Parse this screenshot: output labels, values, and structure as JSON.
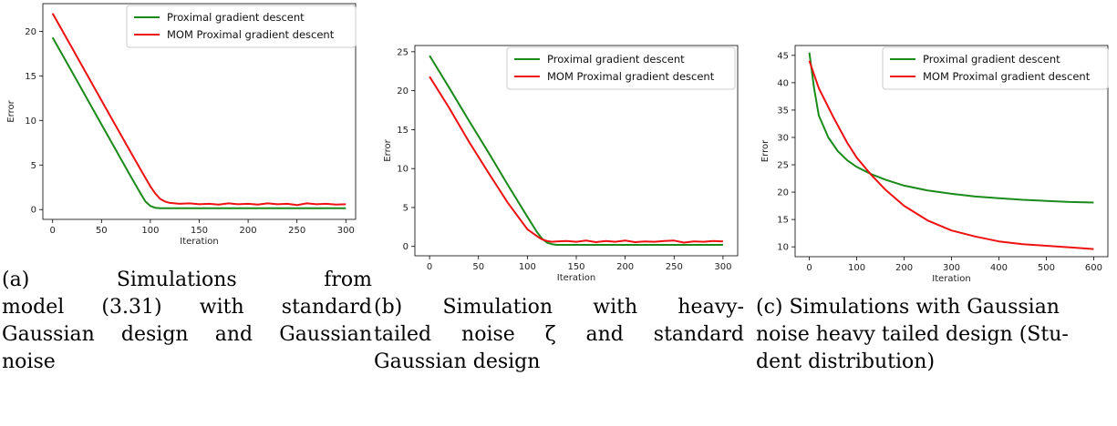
{
  "colors": {
    "green": "#1a8a1a",
    "red": "#ee1111"
  },
  "chart_data": [
    {
      "type": "line",
      "xlabel": "Iteration",
      "ylabel": "Error",
      "xlim": [
        -10,
        310
      ],
      "ylim": [
        -1.1,
        23.1
      ],
      "xticks": [
        0,
        50,
        100,
        150,
        200,
        250,
        300
      ],
      "yticks": [
        0,
        5,
        10,
        15,
        20
      ],
      "legend": "top-right",
      "series": [
        {
          "name": "Proximal gradient descent",
          "color": "green",
          "x": [
            0,
            20,
            40,
            60,
            80,
            90,
            95,
            100,
            105,
            110,
            150,
            200,
            250,
            300
          ],
          "y": [
            19.3,
            15.4,
            11.5,
            7.6,
            3.7,
            1.8,
            0.9,
            0.4,
            0.2,
            0.15,
            0.15,
            0.15,
            0.15,
            0.15
          ]
        },
        {
          "name": "MOM Proximal gradient descent",
          "color": "red",
          "x": [
            0,
            20,
            40,
            60,
            80,
            90,
            100,
            105,
            110,
            115,
            120,
            130,
            140,
            150,
            160,
            170,
            180,
            190,
            200,
            210,
            220,
            230,
            240,
            250,
            260,
            270,
            280,
            290,
            300
          ],
          "y": [
            22.0,
            18.1,
            14.2,
            10.3,
            6.4,
            4.5,
            2.6,
            1.8,
            1.2,
            0.9,
            0.75,
            0.65,
            0.7,
            0.6,
            0.65,
            0.55,
            0.7,
            0.6,
            0.65,
            0.55,
            0.7,
            0.6,
            0.65,
            0.5,
            0.7,
            0.6,
            0.65,
            0.55,
            0.6
          ]
        }
      ]
    },
    {
      "type": "line",
      "xlabel": "Iteration",
      "ylabel": "Error",
      "xlim": [
        -15,
        315
      ],
      "ylim": [
        -1.2,
        25.8
      ],
      "xticks": [
        0,
        50,
        100,
        150,
        200,
        250,
        300
      ],
      "yticks": [
        0,
        5,
        10,
        15,
        20,
        25
      ],
      "legend": "top-right",
      "series": [
        {
          "name": "Proximal gradient descent",
          "color": "green",
          "x": [
            0,
            20,
            40,
            60,
            80,
            100,
            110,
            115,
            120,
            125,
            130,
            150,
            200,
            250,
            300
          ],
          "y": [
            24.5,
            20.4,
            16.2,
            12.1,
            7.9,
            3.8,
            1.8,
            1.0,
            0.5,
            0.3,
            0.2,
            0.2,
            0.2,
            0.2,
            0.2
          ]
        },
        {
          "name": "MOM Proximal gradient descent",
          "color": "red",
          "x": [
            0,
            20,
            40,
            60,
            80,
            100,
            110,
            115,
            120,
            125,
            130,
            140,
            150,
            160,
            170,
            180,
            190,
            200,
            210,
            220,
            230,
            240,
            250,
            260,
            270,
            280,
            290,
            300
          ],
          "y": [
            21.8,
            17.8,
            13.5,
            9.5,
            5.6,
            2.2,
            1.3,
            0.9,
            0.7,
            0.6,
            0.65,
            0.7,
            0.6,
            0.75,
            0.55,
            0.7,
            0.6,
            0.75,
            0.55,
            0.65,
            0.6,
            0.7,
            0.75,
            0.5,
            0.65,
            0.6,
            0.7,
            0.65
          ]
        }
      ]
    },
    {
      "type": "line",
      "xlabel": "Iteration",
      "ylabel": "Error",
      "xlim": [
        -30,
        630
      ],
      "ylim": [
        8.2,
        46.8
      ],
      "xticks": [
        0,
        100,
        200,
        300,
        400,
        500,
        600
      ],
      "yticks": [
        10,
        15,
        20,
        25,
        30,
        35,
        40,
        45
      ],
      "legend": "top-right",
      "series": [
        {
          "name": "Proximal gradient descent",
          "color": "green",
          "x": [
            0,
            10,
            20,
            40,
            60,
            80,
            100,
            130,
            160,
            200,
            250,
            300,
            350,
            400,
            450,
            500,
            550,
            600
          ],
          "y": [
            45.5,
            39.0,
            34.0,
            30.0,
            27.5,
            25.8,
            24.6,
            23.3,
            22.3,
            21.2,
            20.3,
            19.7,
            19.2,
            18.9,
            18.6,
            18.4,
            18.2,
            18.1
          ]
        },
        {
          "name": "MOM Proximal gradient descent",
          "color": "red",
          "x": [
            0,
            10,
            20,
            50,
            80,
            100,
            130,
            160,
            200,
            250,
            300,
            350,
            400,
            450,
            500,
            550,
            600
          ],
          "y": [
            44.0,
            41.5,
            39.0,
            33.8,
            29.0,
            26.3,
            23.2,
            20.5,
            17.5,
            14.8,
            13.0,
            11.9,
            11.0,
            10.5,
            10.2,
            9.9,
            9.6
          ]
        }
      ]
    }
  ],
  "captions": [
    {
      "lines": [
        "(a)       Simulations       from",
        "model (3.31) with standard",
        "Gaussian design and Gaussian",
        "noise"
      ]
    },
    {
      "lines": [
        "(b)  Simulation  with  heavy-",
        "tailed  noise  ζ  and  standard",
        "Gaussian design"
      ]
    },
    {
      "lines": [
        "(c) Simulations with Gaussian",
        "noise heavy tailed design (Stu-",
        "dent distribution)"
      ]
    }
  ]
}
